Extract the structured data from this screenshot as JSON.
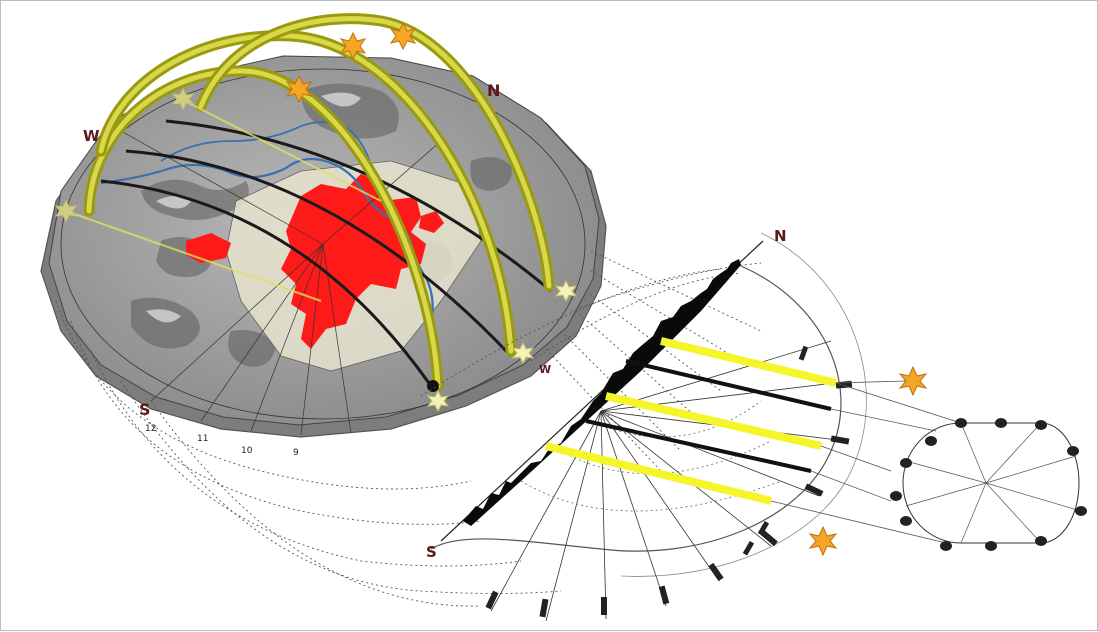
{
  "diagram": {
    "compass": {
      "north": "N",
      "south": "S",
      "west": "W",
      "south_chart": "S",
      "north_chart": "N",
      "west_chart": "W"
    },
    "hour_labels": [
      "12",
      "11",
      "10",
      "9"
    ],
    "colors": {
      "terrain": "#9a9a9a",
      "urban": "#ff1a1a",
      "river": "#3a6fb0",
      "sun_arc": "#b5b51e",
      "sun": "#f5a623",
      "highlight": "#f5f52a"
    }
  }
}
